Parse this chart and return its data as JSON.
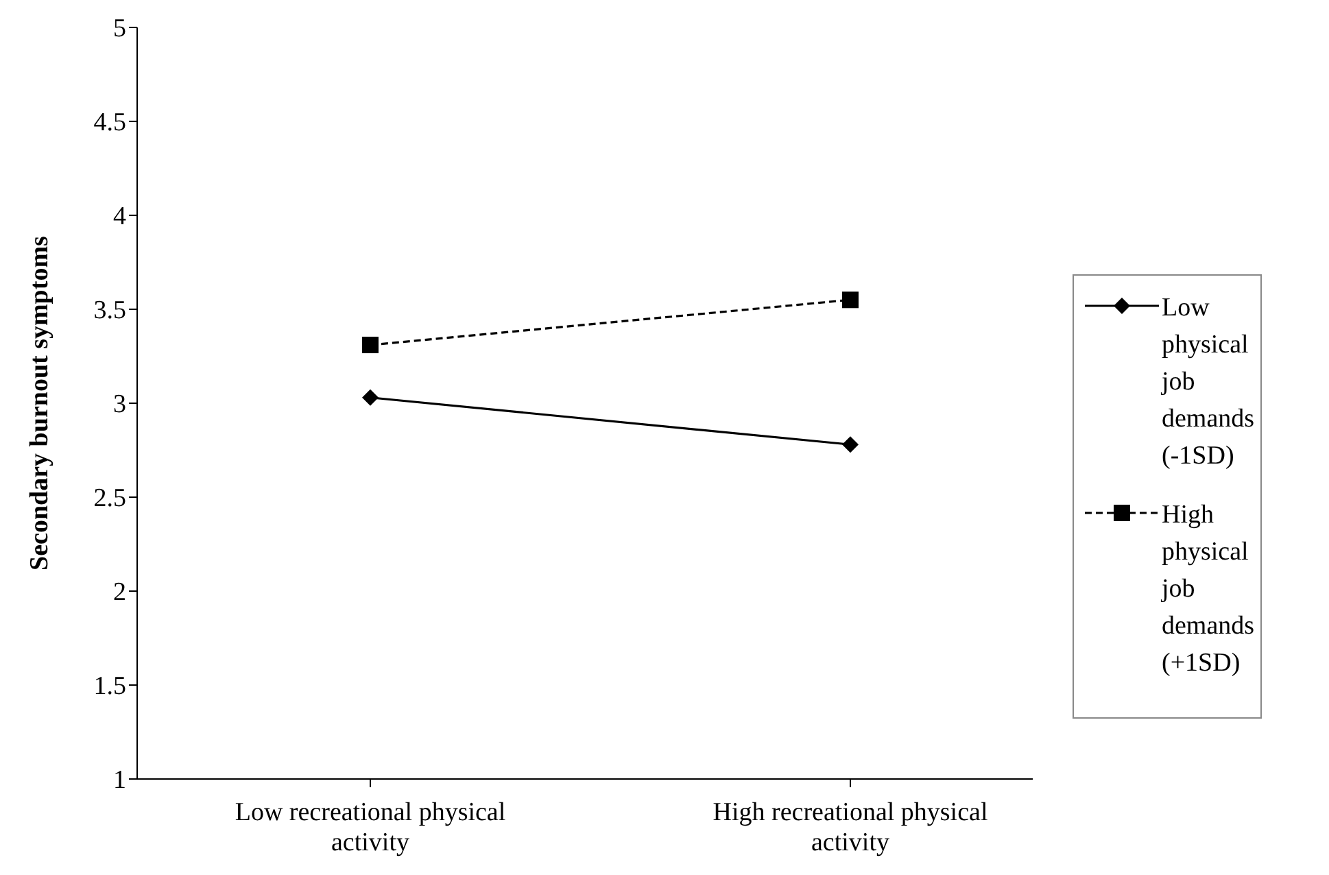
{
  "chart_data": {
    "type": "line",
    "ylabel": "Secondary burnout symptoms",
    "categories": [
      "Low recreational physical activity",
      "High recreational physical activity"
    ],
    "series": [
      {
        "name": "Low physical job demands (-1SD)",
        "color": "#000000",
        "values": [
          3.03,
          2.78
        ],
        "marker": "diamond",
        "line_style": "solid"
      },
      {
        "name": "High physical job demands (+1SD)",
        "color": "#000000",
        "values": [
          3.31,
          3.55
        ],
        "marker": "square",
        "line_style": "dashed"
      }
    ],
    "ylim": [
      1,
      5
    ],
    "yticks": [
      1,
      1.5,
      2,
      2.5,
      3,
      3.5,
      4,
      4.5,
      5
    ],
    "grid": false,
    "legend": "right"
  }
}
